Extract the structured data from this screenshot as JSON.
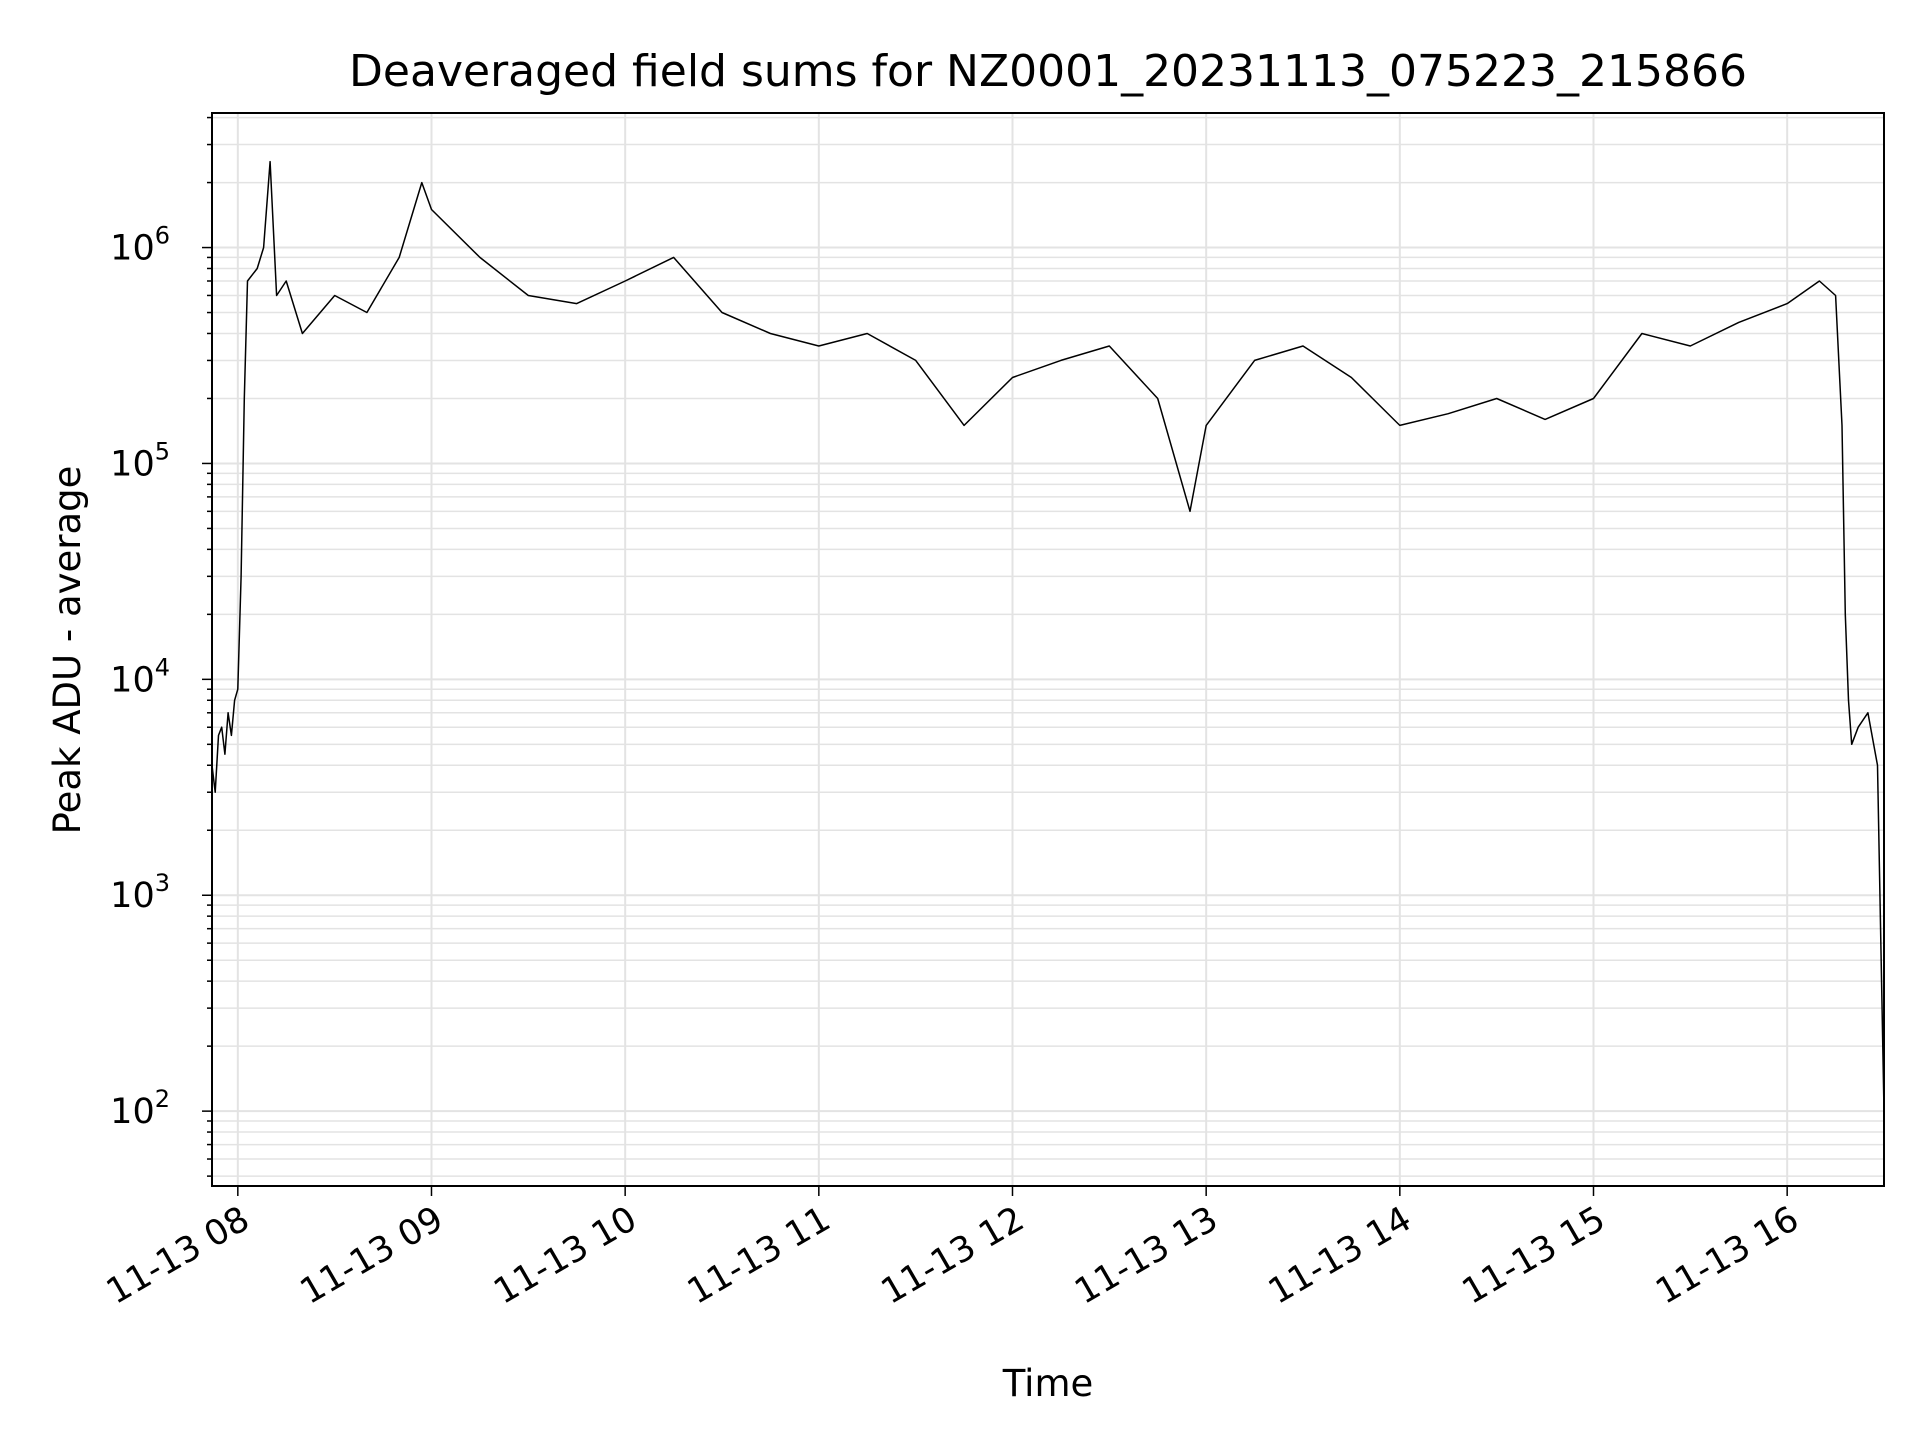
{
  "chart_data": {
    "type": "line",
    "title": "Deaveraged field sums for NZ0001_20231113_075223_215866",
    "xlabel": "Time",
    "ylabel": "Peak ADU - average",
    "yscale": "log",
    "ylim": [
      45,
      4200000
    ],
    "grid": true,
    "line_color": "#000000",
    "grid_color": "#e3e3e3",
    "x_ticks": [
      {
        "t": "2023-11-13 08:00",
        "label": "11-13 08"
      },
      {
        "t": "2023-11-13 09:00",
        "label": "11-13 09"
      },
      {
        "t": "2023-11-13 10:00",
        "label": "11-13 10"
      },
      {
        "t": "2023-11-13 11:00",
        "label": "11-13 11"
      },
      {
        "t": "2023-11-13 12:00",
        "label": "11-13 12"
      },
      {
        "t": "2023-11-13 13:00",
        "label": "11-13 13"
      },
      {
        "t": "2023-11-13 14:00",
        "label": "11-13 14"
      },
      {
        "t": "2023-11-13 15:00",
        "label": "11-13 15"
      },
      {
        "t": "2023-11-13 16:00",
        "label": "11-13 16"
      }
    ],
    "y_ticks": [
      {
        "value": 100,
        "base": "10",
        "exp": "2"
      },
      {
        "value": 1000,
        "base": "10",
        "exp": "3"
      },
      {
        "value": 10000,
        "base": "10",
        "exp": "4"
      },
      {
        "value": 100000,
        "base": "10",
        "exp": "5"
      },
      {
        "value": 1000000,
        "base": "10",
        "exp": "6"
      }
    ],
    "xlim": [
      "2023-11-13 07:52",
      "2023-11-13 16:30"
    ],
    "series": [
      {
        "points": [
          [
            "2023-11-13 07:52",
            4000
          ],
          [
            "2023-11-13 07:53",
            3000
          ],
          [
            "2023-11-13 07:54",
            5500
          ],
          [
            "2023-11-13 07:55",
            6000
          ],
          [
            "2023-11-13 07:56",
            4500
          ],
          [
            "2023-11-13 07:57",
            7000
          ],
          [
            "2023-11-13 07:58",
            5500
          ],
          [
            "2023-11-13 07:59",
            8000
          ],
          [
            "2023-11-13 08:00",
            9000
          ],
          [
            "2023-11-13 08:01",
            30000
          ],
          [
            "2023-11-13 08:02",
            200000
          ],
          [
            "2023-11-13 08:03",
            700000
          ],
          [
            "2023-11-13 08:06",
            800000
          ],
          [
            "2023-11-13 08:08",
            1000000
          ],
          [
            "2023-11-13 08:10",
            2500000
          ],
          [
            "2023-11-13 08:12",
            600000
          ],
          [
            "2023-11-13 08:15",
            700000
          ],
          [
            "2023-11-13 08:20",
            400000
          ],
          [
            "2023-11-13 08:30",
            600000
          ],
          [
            "2023-11-13 08:40",
            500000
          ],
          [
            "2023-11-13 08:50",
            900000
          ],
          [
            "2023-11-13 08:57",
            2000000
          ],
          [
            "2023-11-13 09:00",
            1500000
          ],
          [
            "2023-11-13 09:15",
            900000
          ],
          [
            "2023-11-13 09:30",
            600000
          ],
          [
            "2023-11-13 09:45",
            550000
          ],
          [
            "2023-11-13 10:00",
            700000
          ],
          [
            "2023-11-13 10:15",
            900000
          ],
          [
            "2023-11-13 10:30",
            500000
          ],
          [
            "2023-11-13 10:45",
            400000
          ],
          [
            "2023-11-13 11:00",
            350000
          ],
          [
            "2023-11-13 11:15",
            400000
          ],
          [
            "2023-11-13 11:30",
            300000
          ],
          [
            "2023-11-13 11:45",
            150000
          ],
          [
            "2023-11-13 12:00",
            250000
          ],
          [
            "2023-11-13 12:15",
            300000
          ],
          [
            "2023-11-13 12:30",
            350000
          ],
          [
            "2023-11-13 12:45",
            200000
          ],
          [
            "2023-11-13 12:55",
            60000
          ],
          [
            "2023-11-13 13:00",
            150000
          ],
          [
            "2023-11-13 13:15",
            300000
          ],
          [
            "2023-11-13 13:30",
            350000
          ],
          [
            "2023-11-13 13:45",
            250000
          ],
          [
            "2023-11-13 14:00",
            150000
          ],
          [
            "2023-11-13 14:15",
            170000
          ],
          [
            "2023-11-13 14:30",
            200000
          ],
          [
            "2023-11-13 14:45",
            160000
          ],
          [
            "2023-11-13 15:00",
            200000
          ],
          [
            "2023-11-13 15:15",
            400000
          ],
          [
            "2023-11-13 15:30",
            350000
          ],
          [
            "2023-11-13 15:45",
            450000
          ],
          [
            "2023-11-13 16:00",
            550000
          ],
          [
            "2023-11-13 16:10",
            700000
          ],
          [
            "2023-11-13 16:15",
            600000
          ],
          [
            "2023-11-13 16:17",
            150000
          ],
          [
            "2023-11-13 16:18",
            20000
          ],
          [
            "2023-11-13 16:19",
            8000
          ],
          [
            "2023-11-13 16:20",
            5000
          ],
          [
            "2023-11-13 16:22",
            6000
          ],
          [
            "2023-11-13 16:25",
            7000
          ],
          [
            "2023-11-13 16:28",
            4000
          ],
          [
            "2023-11-13 16:30",
            100
          ]
        ]
      }
    ]
  }
}
